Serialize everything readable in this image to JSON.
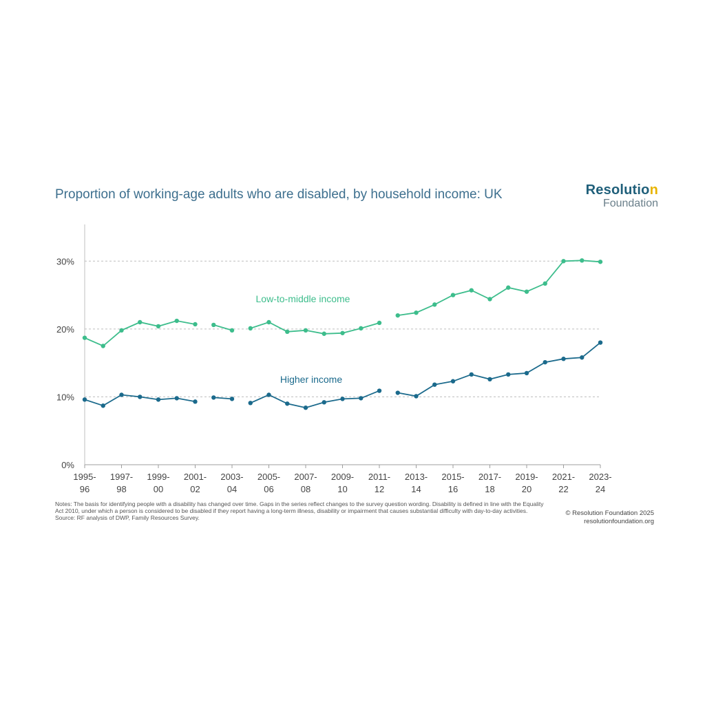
{
  "chart_data": {
    "type": "line",
    "title": "Proportion of working-age adults who are disabled, by household income: UK",
    "x": [
      "1995-96",
      "1996-97",
      "1997-98",
      "1998-99",
      "1999-00",
      "2000-01",
      "2001-02",
      "2002-03",
      "2003-04",
      "2004-05",
      "2005-06",
      "2006-07",
      "2007-08",
      "2008-09",
      "2009-10",
      "2010-11",
      "2011-12",
      "2012-13",
      "2013-14",
      "2014-15",
      "2015-16",
      "2016-17",
      "2017-18",
      "2018-19",
      "2019-20",
      "2020-21",
      "2021-22",
      "2022-23",
      "2023-24"
    ],
    "tick_labels": [
      {
        "line1": "1995-",
        "line2": "96"
      },
      {
        "line1": "1997-",
        "line2": "98"
      },
      {
        "line1": "1999-",
        "line2": "00"
      },
      {
        "line1": "2001-",
        "line2": "02"
      },
      {
        "line1": "2003-",
        "line2": "04"
      },
      {
        "line1": "2005-",
        "line2": "06"
      },
      {
        "line1": "2007-",
        "line2": "08"
      },
      {
        "line1": "2009-",
        "line2": "10"
      },
      {
        "line1": "2011-",
        "line2": "12"
      },
      {
        "line1": "2013-",
        "line2": "14"
      },
      {
        "line1": "2015-",
        "line2": "16"
      },
      {
        "line1": "2017-",
        "line2": "18"
      },
      {
        "line1": "2019-",
        "line2": "20"
      },
      {
        "line1": "2021-",
        "line2": "22"
      },
      {
        "line1": "2023-",
        "line2": "24"
      }
    ],
    "segments": [
      [
        0,
        6
      ],
      [
        7,
        8
      ],
      [
        9,
        16
      ],
      [
        17,
        28
      ]
    ],
    "ylim": [
      0,
      35
    ],
    "yticks": [
      0,
      10,
      20,
      30
    ],
    "ytick_labels": [
      "0%",
      "10%",
      "20%",
      "30%"
    ],
    "grid": true,
    "series": [
      {
        "name": "Low-to-middle income",
        "color": "#3dbd8c",
        "values": [
          18.7,
          17.5,
          19.8,
          21.0,
          20.4,
          21.2,
          20.7,
          20.6,
          19.8,
          20.1,
          21.0,
          19.6,
          19.8,
          19.3,
          19.4,
          20.1,
          20.9,
          22.0,
          22.4,
          23.6,
          25.0,
          25.7,
          24.4,
          26.1,
          25.5,
          26.7,
          30.0,
          30.1,
          29.9
        ]
      },
      {
        "name": "Higher income",
        "color": "#1b6a8c",
        "values": [
          9.6,
          8.7,
          10.3,
          10.0,
          9.6,
          9.8,
          9.3,
          9.9,
          9.7,
          9.1,
          10.3,
          9.0,
          8.4,
          9.2,
          9.7,
          9.8,
          10.9,
          10.6,
          10.1,
          11.8,
          12.3,
          13.3,
          12.6,
          13.3,
          13.5,
          15.1,
          15.6,
          15.8,
          18.0
        ]
      }
    ]
  },
  "logo": {
    "line1_main": "Resolutio",
    "line1_dot": "n",
    "line2": "Foundation"
  },
  "notes": [
    "Notes: The basis for identifying people with a disability has changed over time. Gaps in the series reflect changes to the survey question wording. Disability is defined in line with the Equality Act 2010, under which a person is considered to be disabled if they report having a long-term illness, disability or impairment that causes substantial difficulty with day-to-day activities.",
    "Source: RF analysis of DWP, Family Resources Survey."
  ],
  "credit": {
    "line1": "© Resolution Foundation 2025",
    "line2": "resolutionfoundation.org"
  }
}
